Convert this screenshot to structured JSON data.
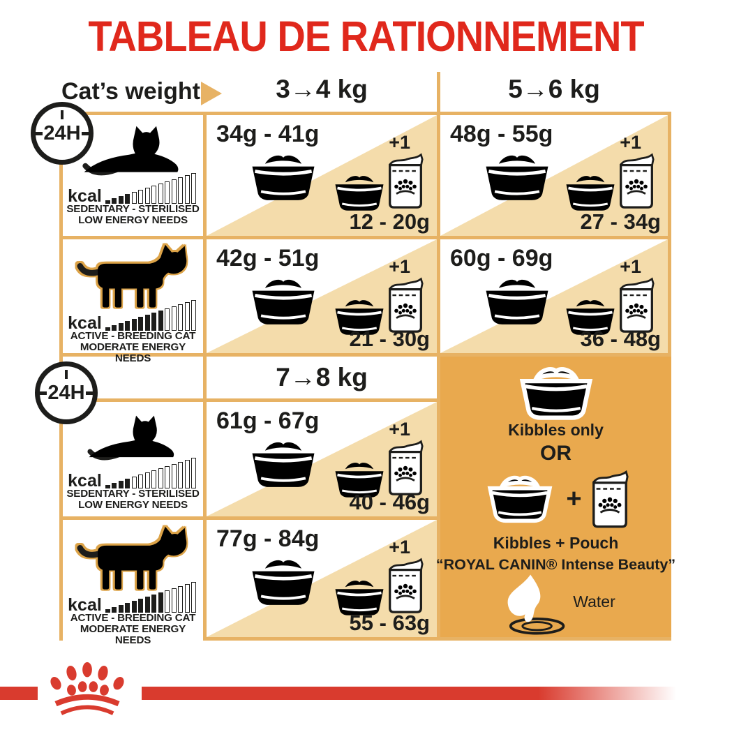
{
  "title": "TABLEAU DE RATIONNEMENT",
  "header": {
    "weight_label": "Cat’s weight"
  },
  "badge_24h": "24H",
  "kcal_label": "kcal",
  "row_types": {
    "sedentary": {
      "line1": "SEDENTARY - STERILISED",
      "line2": "LOW ENERGY NEEDS",
      "bars_total": 14,
      "bars_filled": 4
    },
    "active": {
      "line1": "ACTIVE - BREEDING CAT",
      "line2": "MODERATE ENERGY NEEDS",
      "bars_total": 14,
      "bars_filled": 9
    }
  },
  "sections": [
    {
      "columns": [
        "3→4 kg",
        "5→6 kg"
      ],
      "rows": [
        {
          "type": "sedentary",
          "cells": [
            {
              "kibble": "34g - 41g",
              "plus": "+1",
              "pouch": "12 - 20g"
            },
            {
              "kibble": "48g - 55g",
              "plus": "+1",
              "pouch": "27 - 34g"
            }
          ]
        },
        {
          "type": "active",
          "cells": [
            {
              "kibble": "42g - 51g",
              "plus": "+1",
              "pouch": "21 - 30g"
            },
            {
              "kibble": "60g - 69g",
              "plus": "+1",
              "pouch": "36 - 48g"
            }
          ]
        }
      ]
    },
    {
      "columns": [
        "7→8 kg"
      ],
      "rows": [
        {
          "type": "sedentary",
          "cells": [
            {
              "kibble": "61g - 67g",
              "plus": "+1",
              "pouch": "40 - 46g"
            }
          ]
        },
        {
          "type": "active",
          "cells": [
            {
              "kibble": "77g - 84g",
              "plus": "+1",
              "pouch": "55 - 63g"
            }
          ]
        }
      ]
    }
  ],
  "options_panel": {
    "kibbles_only": "Kibbles only",
    "or_label": "OR",
    "plus_sign": "+",
    "kibbles_pouch_line1": "Kibbles + Pouch",
    "kibbles_pouch_line2": "“ROYAL CANIN® Intense Beauty”",
    "water_label": "Water"
  },
  "icons": {
    "bowl": "kibble-bowl-icon",
    "pouch": "food-pouch-icon",
    "water": "water-splash-icon",
    "clock": "24h-ration-badge",
    "arrow": "weight-arrow-icon",
    "brand": "royal-canin-crown-logo"
  },
  "colors": {
    "title_red": "#e0281c",
    "brand_red": "#d93b2e",
    "tan_border": "#e7b264",
    "tan_light": "#f4dcab",
    "panel_orange": "#e9a94e",
    "ink": "#1d1d1b",
    "cat_outline_gold": "#dca348"
  }
}
